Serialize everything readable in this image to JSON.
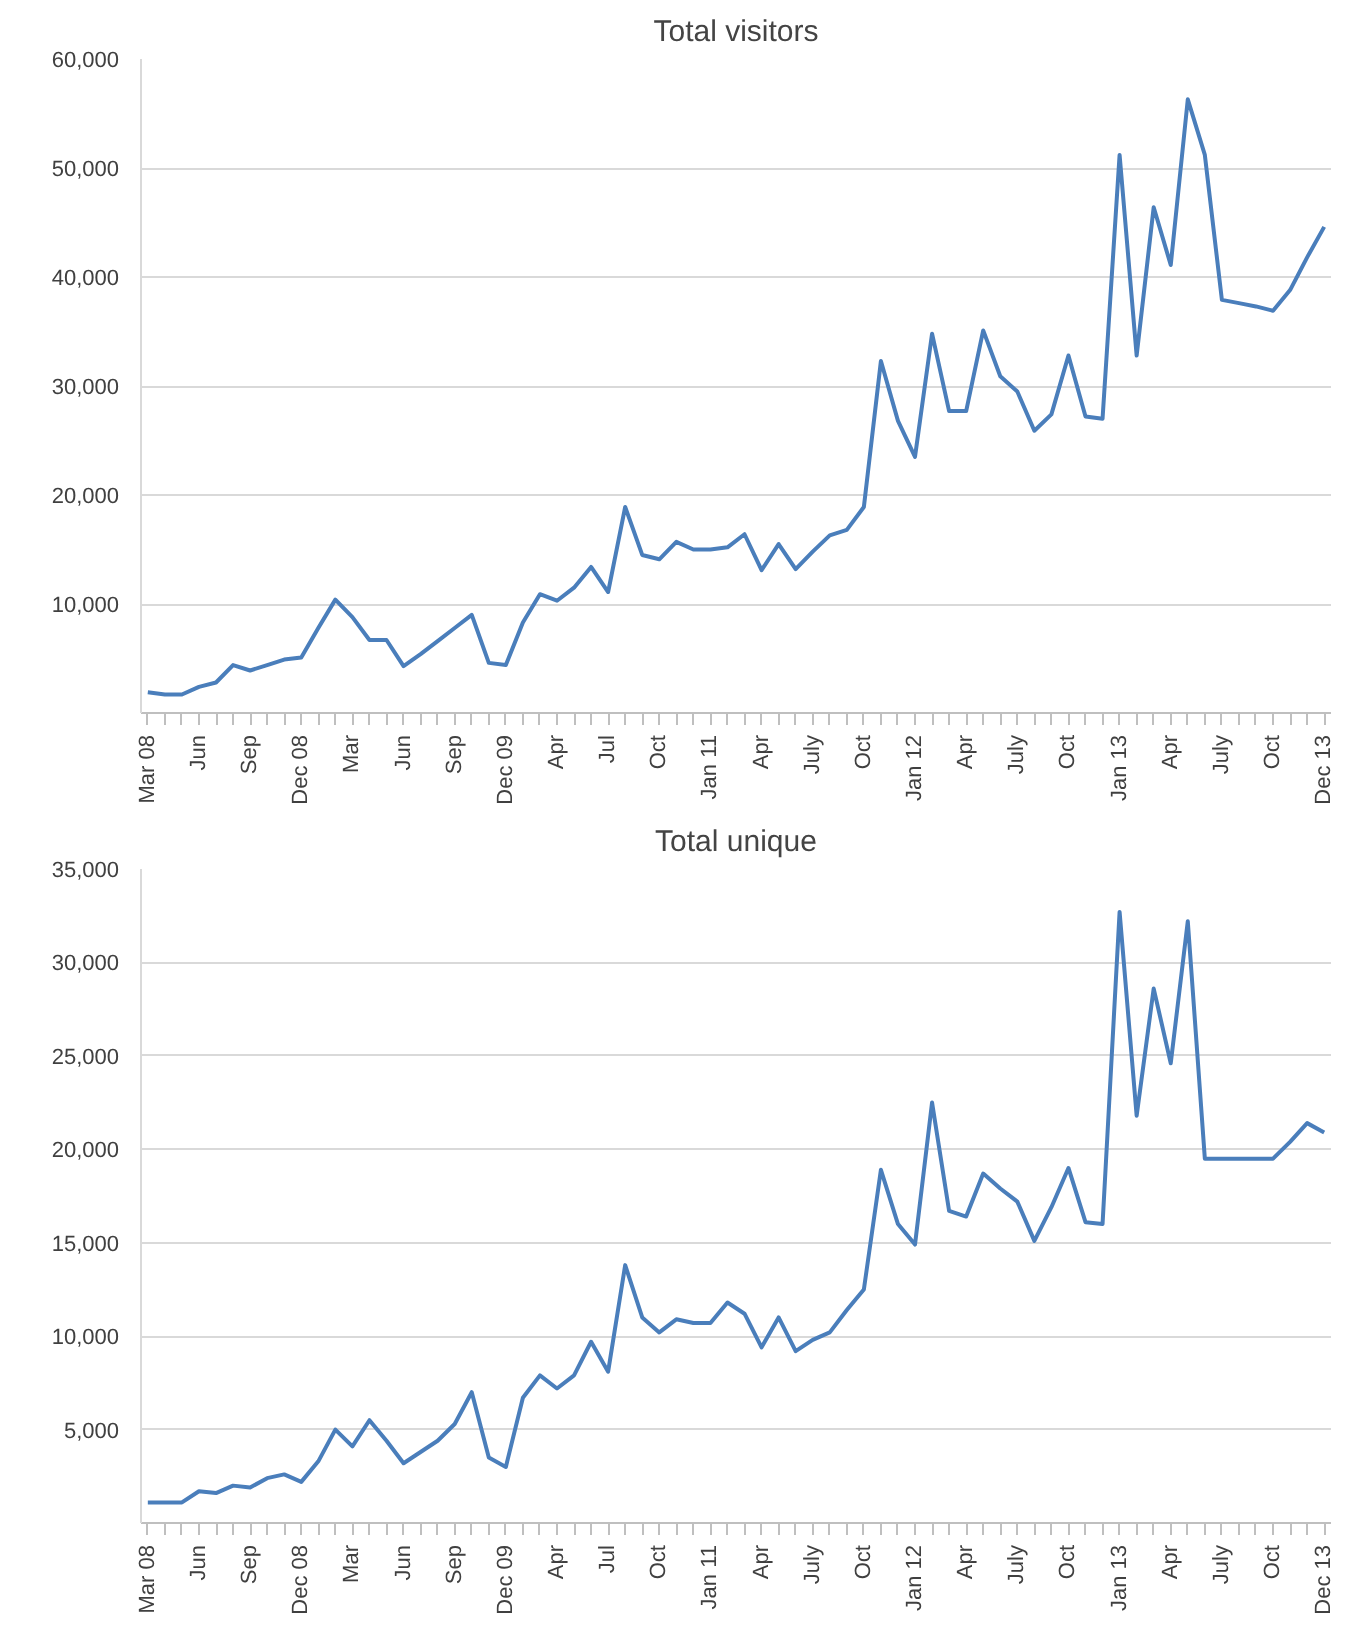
{
  "chart_data": [
    {
      "type": "line",
      "title": "Total visitors",
      "categories": [
        "Mar 08",
        null,
        null,
        "Jun",
        null,
        null,
        "Sep",
        null,
        null,
        "Dec 08",
        null,
        null,
        "Mar",
        null,
        null,
        "Jun",
        null,
        null,
        "Sep",
        null,
        null,
        "Dec 09",
        null,
        null,
        "Apr",
        null,
        null,
        "Jul",
        null,
        null,
        "Oct",
        null,
        null,
        "Jan 11",
        null,
        null,
        "Apr",
        null,
        null,
        "July",
        null,
        null,
        "Oct",
        null,
        null,
        "Jan 12",
        null,
        null,
        "Apr",
        null,
        null,
        "July",
        null,
        null,
        "Oct",
        null,
        null,
        "Jan 13",
        null,
        null,
        "Apr",
        null,
        null,
        "July",
        null,
        null,
        "Oct",
        null,
        null,
        "Dec 13"
      ],
      "series": [
        {
          "color": "#4a7ebb",
          "values": [
            1900,
            1700,
            1700,
            2400,
            2800,
            4400,
            3900,
            4400,
            4900,
            5100,
            7800,
            10400,
            8800,
            6700,
            6700,
            4300,
            5400,
            6600,
            7800,
            9000,
            4600,
            4400,
            8300,
            10900,
            10300,
            11500,
            13400,
            11100,
            18900,
            14500,
            14100,
            15700,
            15000,
            15000,
            15200,
            16400,
            13100,
            15500,
            13200,
            14800,
            16300,
            16800,
            18900,
            32300,
            26800,
            23500,
            34800,
            27700,
            27700,
            35100,
            30900,
            29500,
            25900,
            27400,
            32800,
            27200,
            27000,
            51200,
            32800,
            46400,
            41100,
            56300,
            51200,
            37900,
            37600,
            37300,
            36900,
            38800,
            41800,
            44600
          ]
        }
      ],
      "ylim": [
        0,
        60000
      ],
      "yticks": [
        {
          "value": 10000,
          "label": "10,000"
        },
        {
          "value": 20000,
          "label": "20,000"
        },
        {
          "value": 30000,
          "label": "30,000"
        },
        {
          "value": 40000,
          "label": "40,000"
        },
        {
          "value": 50000,
          "label": "50,000"
        },
        {
          "value": 60000,
          "label": "60,000"
        }
      ],
      "grid": "y",
      "line_style": "solid"
    },
    {
      "type": "line",
      "title": "Total unique",
      "categories": [
        "Mar 08",
        null,
        null,
        "Jun",
        null,
        null,
        "Sep",
        null,
        null,
        "Dec 08",
        null,
        null,
        "Mar",
        null,
        null,
        "Jun",
        null,
        null,
        "Sep",
        null,
        null,
        "Dec 09",
        null,
        null,
        "Apr",
        null,
        null,
        "Jul",
        null,
        null,
        "Oct",
        null,
        null,
        "Jan 11",
        null,
        null,
        "Apr",
        null,
        null,
        "July",
        null,
        null,
        "Oct",
        null,
        null,
        "Jan 12",
        null,
        null,
        "Apr",
        null,
        null,
        "July",
        null,
        null,
        "Oct",
        null,
        null,
        "Jan 13",
        null,
        null,
        "Apr",
        null,
        null,
        "July",
        null,
        null,
        "Oct",
        null,
        null,
        "Dec 13"
      ],
      "series": [
        {
          "color": "#4a7ebb",
          "values": [
            1100,
            1100,
            1100,
            1700,
            1600,
            2000,
            1900,
            2400,
            2600,
            2200,
            3300,
            5000,
            4100,
            5500,
            4400,
            3200,
            3800,
            4400,
            5300,
            7000,
            3500,
            3000,
            6700,
            7900,
            7200,
            7900,
            9700,
            8100,
            13800,
            11000,
            10200,
            10900,
            10700,
            10700,
            11800,
            11200,
            9400,
            11000,
            9200,
            9800,
            10200,
            11400,
            12500,
            18900,
            16000,
            14900,
            22500,
            16700,
            16400,
            18700,
            17900,
            17200,
            15100,
            16900,
            19000,
            16100,
            16000,
            32700,
            21800,
            28600,
            24600,
            32200,
            19500,
            19500,
            19500,
            19500,
            19500,
            20400,
            21400,
            20900
          ]
        }
      ],
      "ylim": [
        0,
        35000
      ],
      "yticks": [
        {
          "value": 5000,
          "label": "5,000"
        },
        {
          "value": 10000,
          "label": "10,000"
        },
        {
          "value": 15000,
          "label": "15,000"
        },
        {
          "value": 20000,
          "label": "20,000"
        },
        {
          "value": 25000,
          "label": "25,000"
        },
        {
          "value": 30000,
          "label": "30,000"
        },
        {
          "value": 35000,
          "label": "35,000"
        }
      ],
      "grid": "y",
      "line_style": "solid"
    }
  ]
}
